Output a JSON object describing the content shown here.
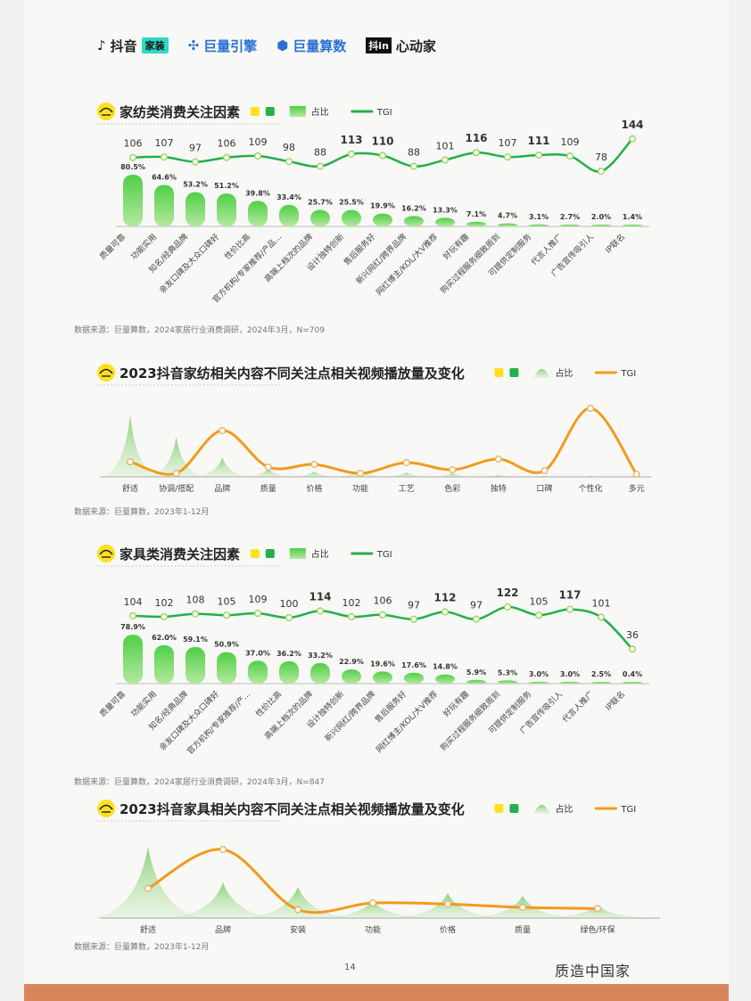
{
  "header": {
    "logos": [
      {
        "name": "抖音",
        "badge": "家装"
      },
      {
        "name": "巨量引擎"
      },
      {
        "name": "巨量算数"
      },
      {
        "name": "心动家",
        "badge": "抖in"
      }
    ]
  },
  "colors": {
    "green": "#22b04b",
    "orange": "#f39a1b",
    "yellow": "#ffe020"
  },
  "section1": {
    "title": "家纺类消费关注因素",
    "legend": {
      "share": "占比",
      "tgi": "TGI"
    },
    "source": "数据来源：巨量算数，2024家居行业消费调研，2024年3月，N=709"
  },
  "section2": {
    "title": "2023抖音家纺相关内容不同关注点相关视频播放量及变化",
    "legend": {
      "share": "占比",
      "tgi": "TGI"
    },
    "source": "数据来源：巨量算数，2023年1-12月"
  },
  "section3": {
    "title": "家具类消费关注因素",
    "legend": {
      "share": "占比",
      "tgi": "TGI"
    },
    "source": "数据来源：巨量算数，2024家居行业消费调研，2024年3月，N=847"
  },
  "section4": {
    "title": "2023抖音家具相关内容不同关注点相关视频播放量及变化",
    "legend": {
      "share": "占比",
      "tgi": "TGI"
    },
    "source": "数据来源：巨量算数，2023年1-12月"
  },
  "footer": {
    "page_number": "14",
    "brand": "质造中国家"
  },
  "chart_data": [
    {
      "type": "bar",
      "title": "家纺类消费关注因素",
      "series": [
        {
          "name": "占比",
          "values": [
            "80.5%",
            "64.6%",
            "53.2%",
            "51.2%",
            "39.8%",
            "33.4%",
            "25.7%",
            "25.5%",
            "19.9%",
            "16.2%",
            "13.3%",
            "7.1%",
            "4.7%",
            "3.1%",
            "2.7%",
            "2.0%",
            "1.4%"
          ]
        },
        {
          "name": "TGI",
          "values": [
            106,
            107,
            97,
            106,
            109,
            98,
            88,
            113,
            110,
            88,
            101,
            116,
            107,
            111,
            109,
            78,
            144
          ]
        }
      ],
      "categories": [
        "质量可靠",
        "功能实用",
        "知名/经典品牌",
        "亲友口碑及大众口碑好",
        "性价比高",
        "官方机构/专家推荐/产品...",
        "高端上档次的品牌",
        "设计独特创新",
        "售后服务好",
        "新兴网红/跨界品牌",
        "网红博主/KOL/大V推荐",
        "好玩有趣",
        "购买过程服务细致周到",
        "可提供定制服务",
        "代言人推广",
        "广告宣传吸引人",
        "IP联名"
      ]
    },
    {
      "type": "area",
      "title": "2023抖音家纺相关内容不同关注点相关视频播放量及变化",
      "categories": [
        "舒适",
        "协调/搭配",
        "品牌",
        "质量",
        "价格",
        "功能",
        "工艺",
        "色彩",
        "独特",
        "口碑",
        "个性化",
        "多元"
      ],
      "series": [
        {
          "name": "占比",
          "values": [
            70,
            45,
            22,
            9,
            6,
            8,
            5,
            4,
            2,
            1,
            1,
            1
          ]
        },
        {
          "name": "TGI",
          "values": [
            15,
            2,
            50,
            9,
            12,
            2,
            14,
            6,
            18,
            5,
            75,
            1
          ]
        }
      ]
    },
    {
      "type": "bar",
      "title": "家具类消费关注因素",
      "series": [
        {
          "name": "占比",
          "values": [
            "78.9%",
            "62.0%",
            "59.1%",
            "50.9%",
            "37.0%",
            "36.2%",
            "33.2%",
            "22.9%",
            "19.6%",
            "17.6%",
            "14.8%",
            "5.9%",
            "5.3%",
            "3.0%",
            "3.0%",
            "2.5%",
            "0.4%"
          ]
        },
        {
          "name": "TGI",
          "values": [
            104,
            102,
            108,
            105,
            109,
            100,
            114,
            102,
            106,
            97,
            112,
            97,
            122,
            105,
            117,
            101,
            36
          ]
        }
      ],
      "categories": [
        "质量可靠",
        "功能实用",
        "知名/经典品牌",
        "亲友口碑及大众口碑好",
        "官方机构/专家推荐/产...",
        "性价比高",
        "高端上档次的品牌",
        "设计独特创新",
        "新兴网红/跨界品牌",
        "售后服务好",
        "网红博主/KOL/大V推荐",
        "好玩有趣",
        "购买过程服务细致周到",
        "可提供定制服务",
        "广告宣传吸引人",
        "代言人推广",
        "IP联名"
      ]
    },
    {
      "type": "area",
      "title": "2023抖音家具相关内容不同关注点相关视频播放量及变化",
      "categories": [
        "舒适",
        "品牌",
        "安装",
        "功能",
        "价格",
        "质量",
        "绿色/环保"
      ],
      "series": [
        {
          "name": "占比",
          "values": [
            80,
            40,
            35,
            20,
            28,
            25,
            15
          ]
        },
        {
          "name": "TGI",
          "values": [
            25,
            60,
            6,
            12,
            11,
            8,
            7
          ]
        }
      ]
    }
  ]
}
